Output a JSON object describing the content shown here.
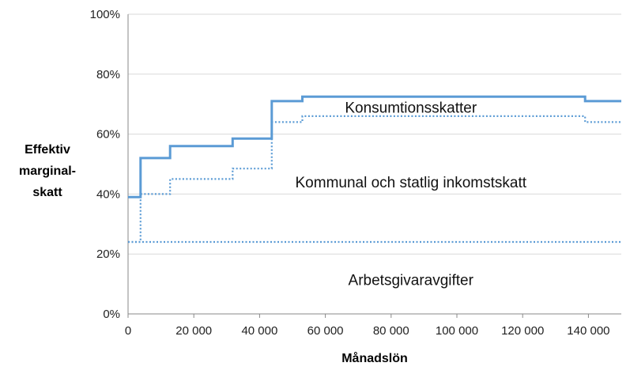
{
  "chart_data": {
    "type": "line",
    "xlabel": "Månadslön",
    "ylabel_lines": [
      "Effektiv",
      "marginal-",
      "skatt"
    ],
    "xlim": [
      0,
      150000
    ],
    "ylim": [
      0,
      1
    ],
    "x_ticks": [
      0,
      20000,
      40000,
      60000,
      80000,
      100000,
      120000,
      140000
    ],
    "x_tick_labels": [
      "0",
      "20 000",
      "40 000",
      "60 000",
      "80 000",
      "100 000",
      "120 000",
      "140 000"
    ],
    "y_ticks": [
      0,
      0.2,
      0.4,
      0.6,
      0.8,
      1.0
    ],
    "y_tick_labels": [
      "0%",
      "20%",
      "40%",
      "60%",
      "80%",
      "100%"
    ],
    "line_color": "#5b9bd5",
    "series": [
      {
        "style": "solid",
        "x": [
          0,
          3800,
          3800,
          12800,
          12800,
          31800,
          31800,
          43700,
          43700,
          53000,
          53000,
          139000,
          139000,
          150000
        ],
        "y": [
          0.39,
          0.39,
          0.52,
          0.52,
          0.56,
          0.56,
          0.585,
          0.585,
          0.71,
          0.71,
          0.725,
          0.725,
          0.71,
          0.71
        ]
      },
      {
        "style": "dotted",
        "x": [
          0,
          3800,
          3800,
          12800,
          12800,
          31800,
          31800,
          43700,
          43700,
          53000,
          53000,
          139000,
          139000,
          150000
        ],
        "y": [
          0.24,
          0.24,
          0.4,
          0.4,
          0.45,
          0.45,
          0.485,
          0.485,
          0.64,
          0.64,
          0.66,
          0.66,
          0.64,
          0.64
        ]
      },
      {
        "style": "dotted",
        "x": [
          0,
          150000
        ],
        "y": [
          0.24,
          0.24
        ]
      }
    ],
    "annotations": [
      {
        "text": "Konsumtionsskatter",
        "x": 86000,
        "y": 0.69
      },
      {
        "text": "Kommunal och statlig inkomstskatt",
        "x": 86000,
        "y": 0.44
      },
      {
        "text": "Arbetsgivaravgifter",
        "x": 86000,
        "y": 0.115
      }
    ]
  }
}
